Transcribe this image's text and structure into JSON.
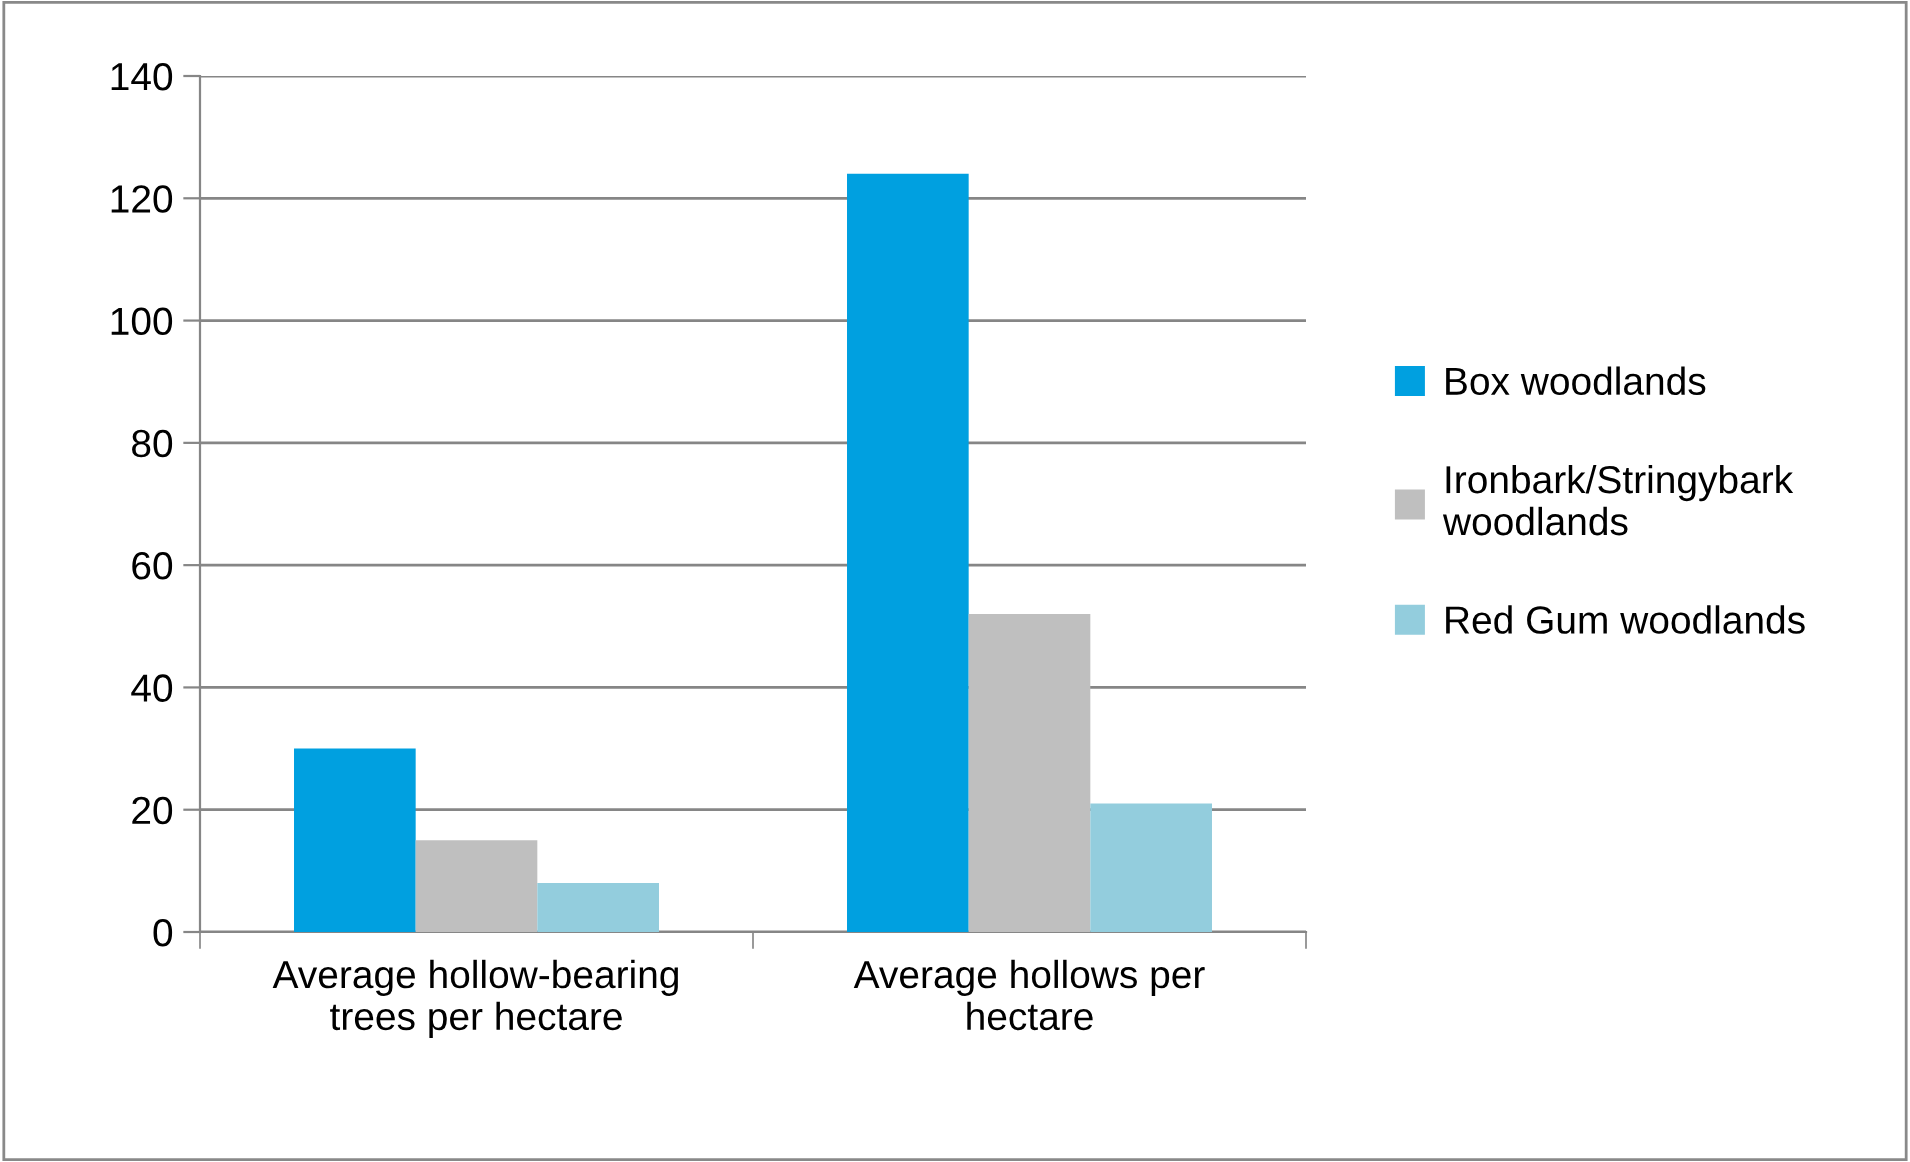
{
  "chart_data": {
    "type": "bar",
    "categories": [
      "Average hollow-bearing\ntrees per hectare",
      "Average hollows per\nhectare"
    ],
    "series": [
      {
        "name": "Box woodlands",
        "color": "#00a0e0",
        "values": [
          30,
          124
        ]
      },
      {
        "name": "Ironbark/Stringybark\nwoodlands",
        "color": "#bfbfbf",
        "values": [
          15,
          52
        ]
      },
      {
        "name": "Red Gum woodlands",
        "color": "#93cddd",
        "values": [
          8,
          21
        ]
      }
    ],
    "ylim": [
      0,
      140
    ],
    "yticks": [
      0,
      20,
      40,
      60,
      80,
      100,
      120,
      140
    ],
    "grid": "y",
    "legend": "right"
  }
}
